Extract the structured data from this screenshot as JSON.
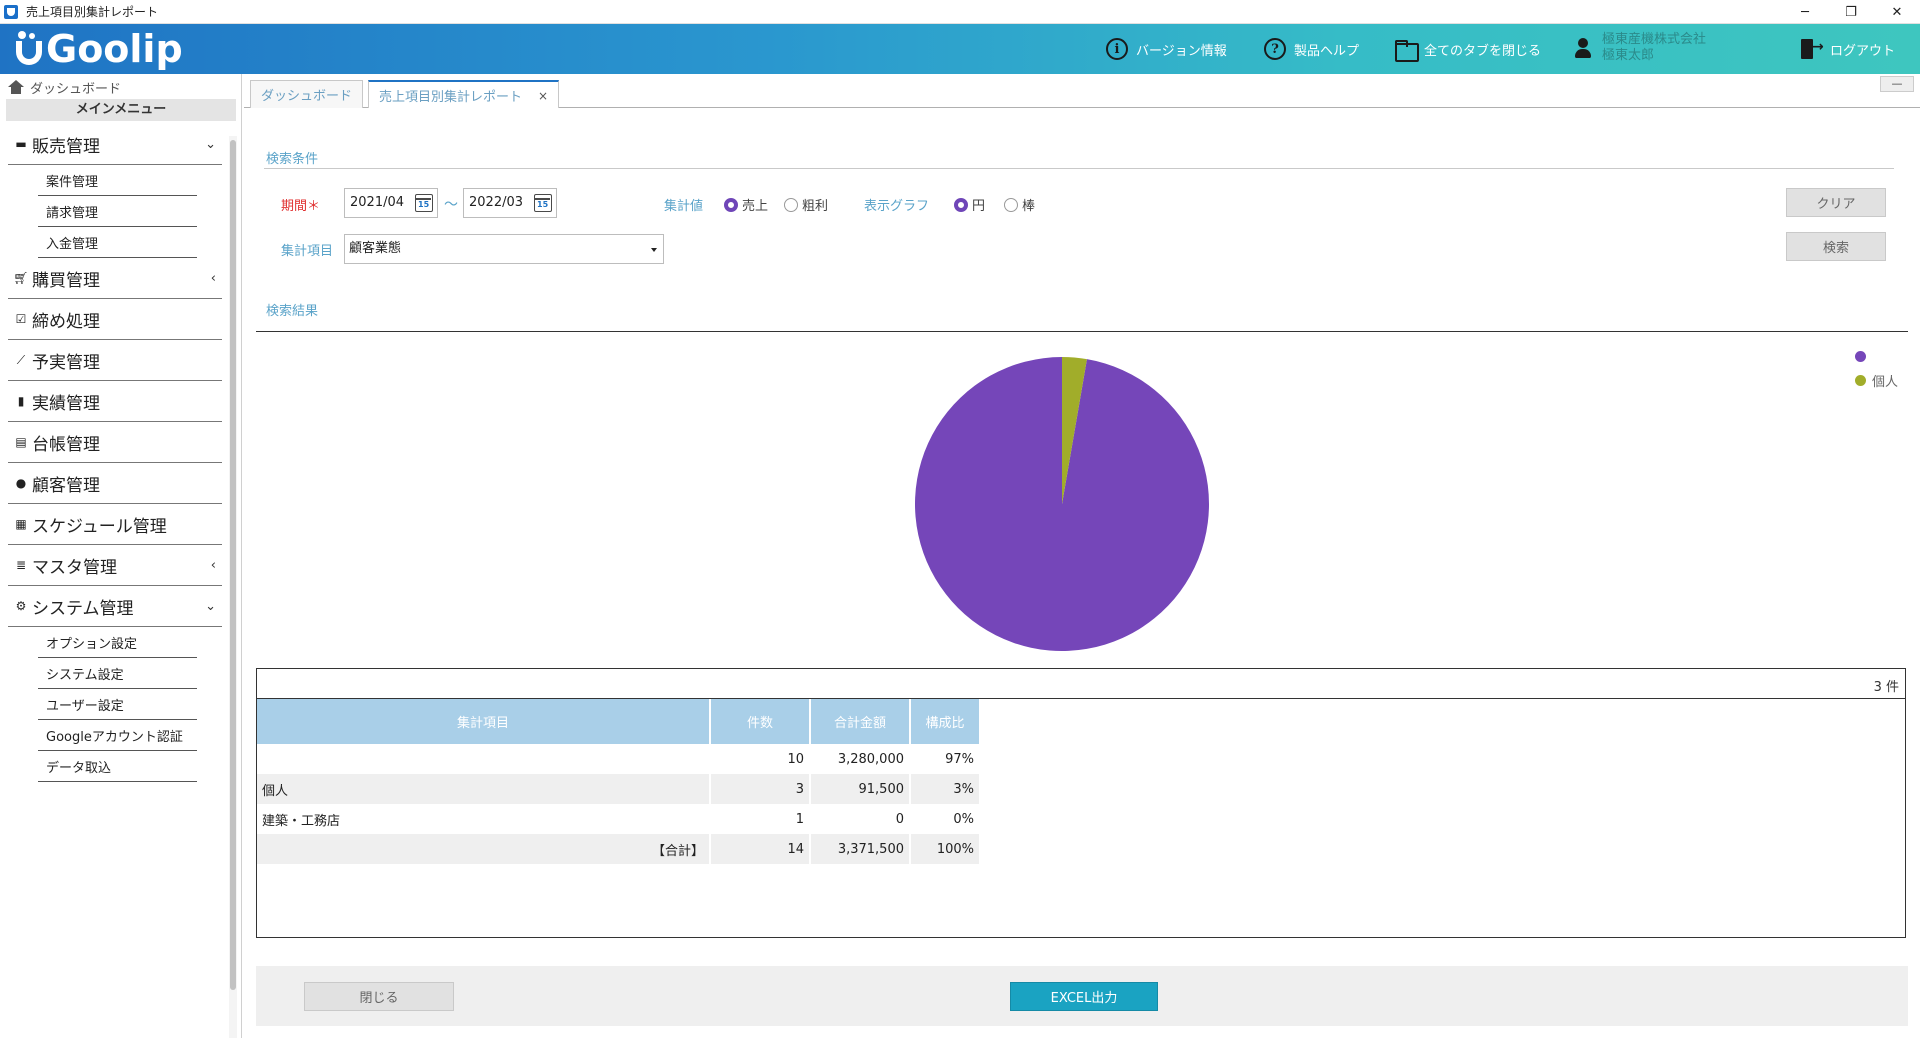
{
  "window": {
    "title": "売上項目別集計レポート",
    "controls": [
      "─",
      "❐",
      "✕"
    ]
  },
  "header": {
    "logo_text": "Goolip",
    "version_info": "バージョン情報",
    "product_help": "製品ヘルプ",
    "close_all_tabs": "全てのタブを閉じる",
    "company": "極東産機株式会社",
    "user_name": "極東太郎",
    "logout": "ログアウト"
  },
  "sidebar": {
    "dashboard_link": "ダッシュボード",
    "main_menu_title": "メインメニュー",
    "groups": [
      {
        "label": "販売管理",
        "icon": "register-icon",
        "chevron": "⌄",
        "items": [
          "案件管理",
          "請求管理",
          "入金管理"
        ]
      },
      {
        "label": "購買管理",
        "icon": "cart-icon",
        "chevron": "‹",
        "items": []
      },
      {
        "label": "締め処理",
        "icon": "checkbox-icon",
        "chevron": "",
        "items": []
      },
      {
        "label": "予実管理",
        "icon": "chart-line-icon",
        "chevron": "",
        "items": []
      },
      {
        "label": "実績管理",
        "icon": "bookmark-icon",
        "chevron": "",
        "items": []
      },
      {
        "label": "台帳管理",
        "icon": "book-icon",
        "chevron": "",
        "items": []
      },
      {
        "label": "顧客管理",
        "icon": "users-icon",
        "chevron": "",
        "items": []
      },
      {
        "label": "スケジュール管理",
        "icon": "calendar-icon",
        "chevron": "",
        "items": []
      },
      {
        "label": "マスタ管理",
        "icon": "database-icon",
        "chevron": "‹",
        "items": []
      },
      {
        "label": "システム管理",
        "icon": "gear-icon",
        "chevron": "⌄",
        "items": [
          "オプション設定",
          "システム設定",
          "ユーザー設定",
          "Googleアカウント認証",
          "データ取込"
        ]
      }
    ]
  },
  "tabs": [
    {
      "label": "ダッシュボード",
      "active": false
    },
    {
      "label": "売上項目別集計レポート",
      "active": true,
      "close": "×"
    }
  ],
  "minimize_label": "—",
  "search": {
    "section_title": "検索条件",
    "period_label": "期間",
    "required_mark": "＊",
    "date_from": "2021/04",
    "date_to": "2022/03",
    "range_separator": "～",
    "aggregate_value_label": "集計値",
    "aggregate_options": [
      {
        "label": "売上",
        "checked": true
      },
      {
        "label": "粗利",
        "checked": false
      }
    ],
    "graph_label": "表示グラフ",
    "graph_options": [
      {
        "label": "円",
        "checked": true
      },
      {
        "label": "棒",
        "checked": false
      }
    ],
    "item_label": "集計項目",
    "item_value": "顧客業態",
    "clear_button": "クリア",
    "search_button": "検索"
  },
  "results": {
    "section_title": "検索結果",
    "count_text": "3 件",
    "columns": [
      "集計項目",
      "件数",
      "合計金額",
      "構成比"
    ],
    "rows": [
      {
        "item": "",
        "count": "10",
        "amount": "3,280,000",
        "ratio": "97%"
      },
      {
        "item": "個人",
        "count": "3",
        "amount": "91,500",
        "ratio": "3%"
      },
      {
        "item": "建築・工務店",
        "count": "1",
        "amount": "0",
        "ratio": "0%"
      }
    ],
    "total": {
      "item": "【合計】",
      "count": "14",
      "amount": "3,371,500",
      "ratio": "100%"
    }
  },
  "chart_data": {
    "type": "pie",
    "categories": [
      "",
      "個人",
      "建築・工務店"
    ],
    "values": [
      3280000,
      91500,
      0
    ],
    "colors": [
      "#7546b9",
      "#a1ad2a",
      "#e07030"
    ],
    "legend": [
      {
        "label": "",
        "color": "#7546b9"
      },
      {
        "label": "個人",
        "color": "#a1ad2a"
      }
    ],
    "legend_position": "top-right"
  },
  "footer": {
    "close_button": "閉じる",
    "excel_button": "EXCEL出力"
  }
}
